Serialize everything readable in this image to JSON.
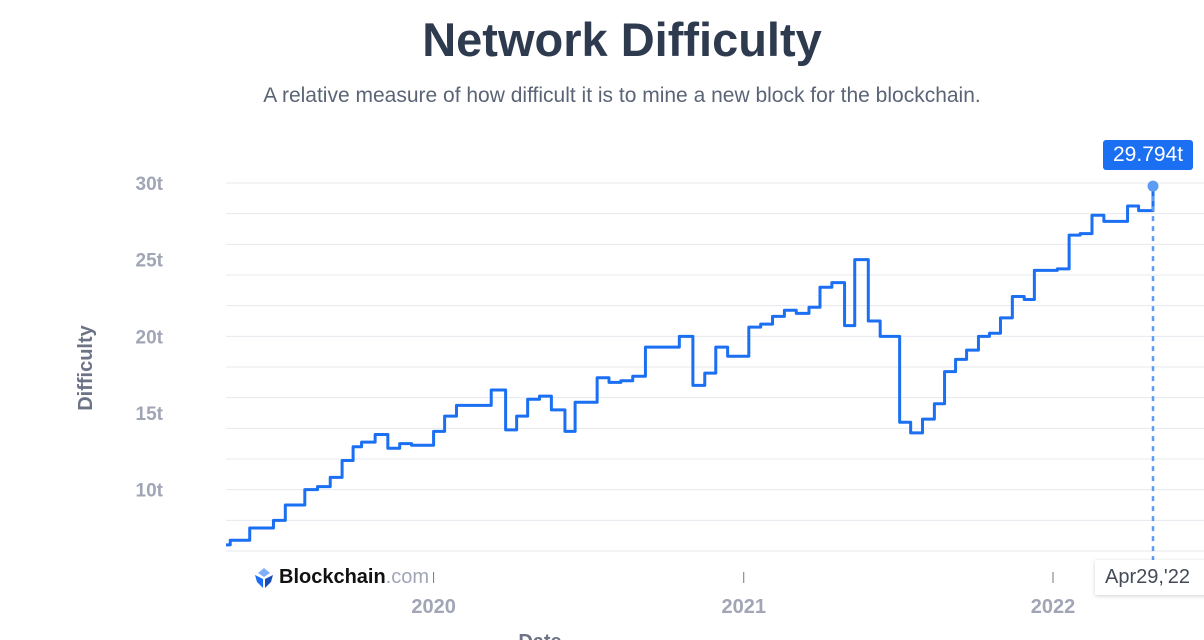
{
  "header": {
    "title": "Network Difficulty",
    "subtitle": "A relative measure of how difficult it is to mine a new block for the blockchain."
  },
  "brand": {
    "name": "Blockchain",
    "suffix": ".com"
  },
  "colors": {
    "line": "#1a6ff2",
    "point": "#5b9cf5",
    "grid": "#e6e8ee",
    "tick": "#a1a5b5"
  },
  "tooltip": {
    "value": "29.794t",
    "date": "Apr29,'22"
  },
  "chart_data": {
    "type": "line",
    "step": true,
    "title": "",
    "xlabel": "Date",
    "ylabel": "Difficulty",
    "y_unit": "t (trillion)",
    "ylim": [
      6,
      30
    ],
    "xlim": [
      "2019-05-01",
      "2022-04-29"
    ],
    "grid": true,
    "y_ticks": [
      {
        "v": 10,
        "label": "10t"
      },
      {
        "v": 15,
        "label": "15t"
      },
      {
        "v": 20,
        "label": "20t"
      },
      {
        "v": 25,
        "label": "25t"
      },
      {
        "v": 30,
        "label": "30t"
      }
    ],
    "x_ticks": [
      {
        "v": "2020-01-01",
        "label": "2020"
      },
      {
        "v": "2021-01-01",
        "label": "2021"
      },
      {
        "v": "2022-01-01",
        "label": "2022"
      }
    ],
    "series": [
      {
        "points": [
          [
            "2019-05-01",
            6.4
          ],
          [
            "2019-05-06",
            6.7
          ],
          [
            "2019-05-29",
            7.5
          ],
          [
            "2019-06-26",
            8.0
          ],
          [
            "2019-07-10",
            9.0
          ],
          [
            "2019-08-02",
            10.0
          ],
          [
            "2019-08-17",
            10.2
          ],
          [
            "2019-09-01",
            10.8
          ],
          [
            "2019-09-15",
            11.9
          ],
          [
            "2019-09-28",
            12.8
          ],
          [
            "2019-10-08",
            13.1
          ],
          [
            "2019-10-24",
            13.6
          ],
          [
            "2019-11-08",
            12.7
          ],
          [
            "2019-11-22",
            13.0
          ],
          [
            "2019-12-06",
            12.9
          ],
          [
            "2020-01-01",
            13.8
          ],
          [
            "2020-01-14",
            14.8
          ],
          [
            "2020-01-28",
            15.5
          ],
          [
            "2020-02-11",
            15.5
          ],
          [
            "2020-02-24",
            15.5
          ],
          [
            "2020-03-09",
            16.5
          ],
          [
            "2020-03-26",
            13.9
          ],
          [
            "2020-04-08",
            14.8
          ],
          [
            "2020-04-21",
            15.9
          ],
          [
            "2020-05-05",
            16.1
          ],
          [
            "2020-05-19",
            15.2
          ],
          [
            "2020-06-04",
            13.8
          ],
          [
            "2020-06-16",
            15.7
          ],
          [
            "2020-07-12",
            17.3
          ],
          [
            "2020-07-26",
            17.0
          ],
          [
            "2020-08-09",
            17.1
          ],
          [
            "2020-08-23",
            17.4
          ],
          [
            "2020-09-07",
            19.3
          ],
          [
            "2020-10-01",
            19.3
          ],
          [
            "2020-10-17",
            20.0
          ],
          [
            "2020-11-02",
            16.8
          ],
          [
            "2020-11-16",
            17.6
          ],
          [
            "2020-11-29",
            19.3
          ],
          [
            "2020-12-13",
            18.7
          ],
          [
            "2021-01-07",
            20.6
          ],
          [
            "2021-01-21",
            20.8
          ],
          [
            "2021-02-04",
            21.3
          ],
          [
            "2021-02-18",
            21.7
          ],
          [
            "2021-03-04",
            21.5
          ],
          [
            "2021-03-19",
            21.9
          ],
          [
            "2021-04-01",
            23.2
          ],
          [
            "2021-04-15",
            23.5
          ],
          [
            "2021-04-30",
            20.7
          ],
          [
            "2021-05-12",
            25.0
          ],
          [
            "2021-05-28",
            21.0
          ],
          [
            "2021-06-11",
            20.0
          ],
          [
            "2021-07-04",
            14.4
          ],
          [
            "2021-07-17",
            13.7
          ],
          [
            "2021-07-31",
            14.6
          ],
          [
            "2021-08-14",
            15.6
          ],
          [
            "2021-08-26",
            17.7
          ],
          [
            "2021-09-08",
            18.5
          ],
          [
            "2021-09-21",
            19.1
          ],
          [
            "2021-10-05",
            20.0
          ],
          [
            "2021-10-18",
            20.2
          ],
          [
            "2021-10-31",
            21.2
          ],
          [
            "2021-11-14",
            22.6
          ],
          [
            "2021-11-28",
            22.4
          ],
          [
            "2021-12-10",
            24.3
          ],
          [
            "2021-12-24",
            24.3
          ],
          [
            "2022-01-06",
            24.4
          ],
          [
            "2022-01-20",
            26.6
          ],
          [
            "2022-02-02",
            26.7
          ],
          [
            "2022-02-16",
            27.9
          ],
          [
            "2022-03-02",
            27.5
          ],
          [
            "2022-03-16",
            27.5
          ],
          [
            "2022-03-30",
            28.5
          ],
          [
            "2022-04-12",
            28.2
          ],
          [
            "2022-04-29",
            29.794
          ]
        ]
      }
    ]
  }
}
